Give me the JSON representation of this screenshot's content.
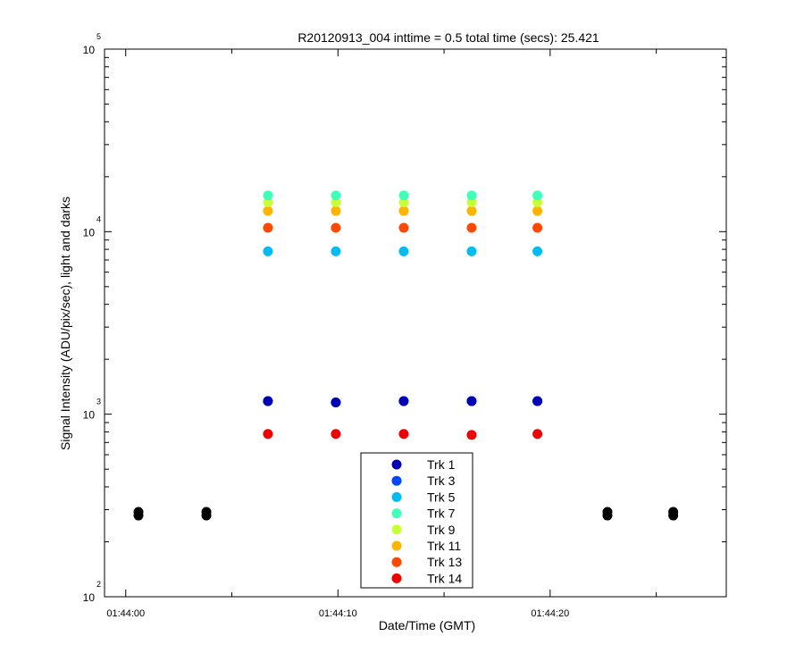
{
  "chart_data": {
    "type": "scatter",
    "title": "R20120913_004 inttime = 0.5 total time (secs): 25.421",
    "xlabel": "Date/Time (GMT)",
    "ylabel": "Signal Intensity (ADU/pix/sec), light and darks",
    "y_scale": "log",
    "ylim": [
      100,
      100000
    ],
    "y_ticks": [
      {
        "base": "10",
        "exp": "2",
        "value": 100
      },
      {
        "base": "10",
        "exp": "3",
        "value": 1000
      },
      {
        "base": "10",
        "exp": "4",
        "value": 10000
      },
      {
        "base": "10",
        "exp": "5",
        "value": 100000
      }
    ],
    "xlim": [
      "01:43:59.0",
      "01:44:28.3"
    ],
    "x_ticks": [
      {
        "label": "01:44:00",
        "value": "01:44:00"
      },
      {
        "label": "01:44:10",
        "value": "01:44:10"
      },
      {
        "label": "01:44:20",
        "value": "01:44:20"
      }
    ],
    "light_times": [
      "01:44:06.7",
      "01:44:09.9",
      "01:44:13.1",
      "01:44:16.3",
      "01:44:19.4"
    ],
    "series": [
      {
        "name": "Trk 1",
        "color": "#0000b4",
        "values": [
          1180,
          1160,
          1180,
          1180,
          1180
        ]
      },
      {
        "name": "Trk 3",
        "color": "#0048ff",
        "values": [
          1180,
          1160,
          1180,
          1180,
          1180
        ]
      },
      {
        "name": "Trk 5",
        "color": "#00bcf0",
        "values": [
          7800,
          7800,
          7800,
          7800,
          7800
        ]
      },
      {
        "name": "Trk 7",
        "color": "#40ffb8",
        "values": [
          15800,
          15800,
          15800,
          15800,
          15800
        ]
      },
      {
        "name": "Trk 9",
        "color": "#c8ff38",
        "values": [
          14500,
          14500,
          14500,
          14500,
          14500
        ]
      },
      {
        "name": "Trk 11",
        "color": "#ffb400",
        "values": [
          13000,
          13000,
          13000,
          13000,
          13000
        ]
      },
      {
        "name": "Trk 13",
        "color": "#ff4800",
        "values": [
          10500,
          10500,
          10500,
          10500,
          10500
        ]
      },
      {
        "name": "Trk 14",
        "color": "#f00000",
        "values": [
          780,
          780,
          780,
          770,
          780
        ]
      }
    ],
    "darks": {
      "color": "#000000",
      "times": [
        "01:44:00.6",
        "01:44:03.8",
        "01:44:22.7",
        "01:44:25.8"
      ],
      "values": [
        285,
        285,
        285,
        285
      ]
    },
    "legend_position": "bottom-center",
    "grid": false
  }
}
